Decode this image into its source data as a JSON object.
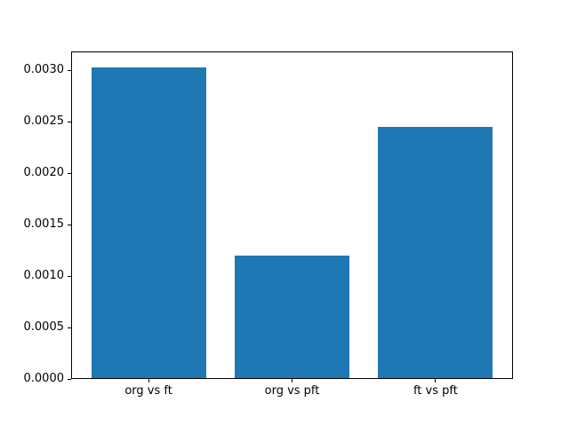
{
  "figure": {
    "background_color": "#ffffff",
    "spine_color": "#000000",
    "tick_color": "#000000",
    "label_color": "#000000"
  },
  "chart_data": {
    "type": "bar",
    "title": "",
    "xlabel": "",
    "ylabel": "",
    "categories": [
      "org vs ft",
      "org vs pft",
      "ft vs pft"
    ],
    "x": [
      0,
      1,
      2
    ],
    "values": [
      0.00303,
      0.0012,
      0.00245
    ],
    "bar_color": "#1f77b4",
    "bar_width": 0.8,
    "xlim": [
      -0.54,
      2.54
    ],
    "ylim": [
      0,
      0.003182
    ],
    "yticks": [
      {
        "value": 0.0,
        "label": "0.0000"
      },
      {
        "value": 0.0005,
        "label": "0.0005"
      },
      {
        "value": 0.001,
        "label": "0.0010"
      },
      {
        "value": 0.0015,
        "label": "0.0015"
      },
      {
        "value": 0.002,
        "label": "0.0020"
      },
      {
        "value": 0.0025,
        "label": "0.0025"
      },
      {
        "value": 0.003,
        "label": "0.0030"
      }
    ],
    "grid": false,
    "legend": null
  }
}
